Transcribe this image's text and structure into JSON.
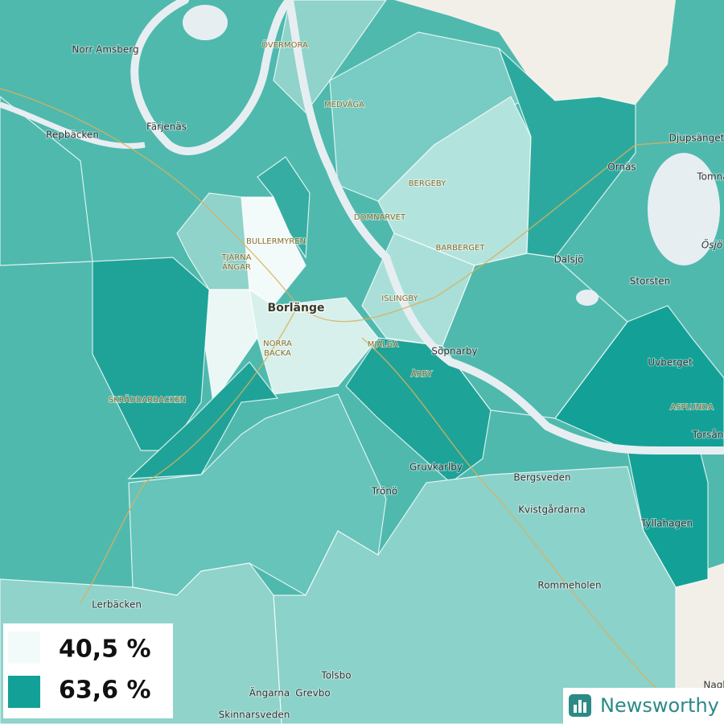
{
  "places": [
    {
      "label": "Norr Amsberg"
    },
    {
      "label": "ÖVERMORA"
    },
    {
      "label": "Färjenäs"
    },
    {
      "label": "Repbäcken"
    },
    {
      "label": "MEDVÄGA"
    },
    {
      "label": "Djupsänget"
    },
    {
      "label": "Ornäs"
    },
    {
      "label": "Tomna"
    },
    {
      "label": "BERGEBY"
    },
    {
      "label": "DOMNARVET"
    },
    {
      "label": "BULLERMYREN"
    },
    {
      "label": "BARBERGET"
    },
    {
      "label": "TJÄRNA"
    },
    {
      "label": "ÄNGAR"
    },
    {
      "label": "Dalsjö"
    },
    {
      "label": "Ösjö"
    },
    {
      "label": "Storsten"
    },
    {
      "label": "ISLINGBY"
    },
    {
      "label": "Borlänge"
    },
    {
      "label": "NORRA"
    },
    {
      "label": "BACKA"
    },
    {
      "label": "MJÄLGA"
    },
    {
      "label": "Söpnarby"
    },
    {
      "label": "Uvberget"
    },
    {
      "label": "ÅRBY"
    },
    {
      "label": "SKRÄDDARBACKEN"
    },
    {
      "label": "ASPLUNDA"
    },
    {
      "label": "Torsån"
    },
    {
      "label": "Gruvkarlby"
    },
    {
      "label": "Bergsveden"
    },
    {
      "label": "Trönö"
    },
    {
      "label": "Kvistgårdarna"
    },
    {
      "label": "Tyllahagen"
    },
    {
      "label": "Rommeholen"
    },
    {
      "label": "Lerbäcken"
    },
    {
      "label": "Tolsbo"
    },
    {
      "label": "Ängarna"
    },
    {
      "label": "Grevbo"
    },
    {
      "label": "Skinnarsveden"
    },
    {
      "label": "Nagl"
    }
  ],
  "legend": {
    "items": [
      {
        "label": "40,5 %",
        "color": "#f3fbfa"
      },
      {
        "label": "63,6 %",
        "color": "#13a197"
      }
    ]
  },
  "logo": {
    "text": "Newsworthy"
  }
}
